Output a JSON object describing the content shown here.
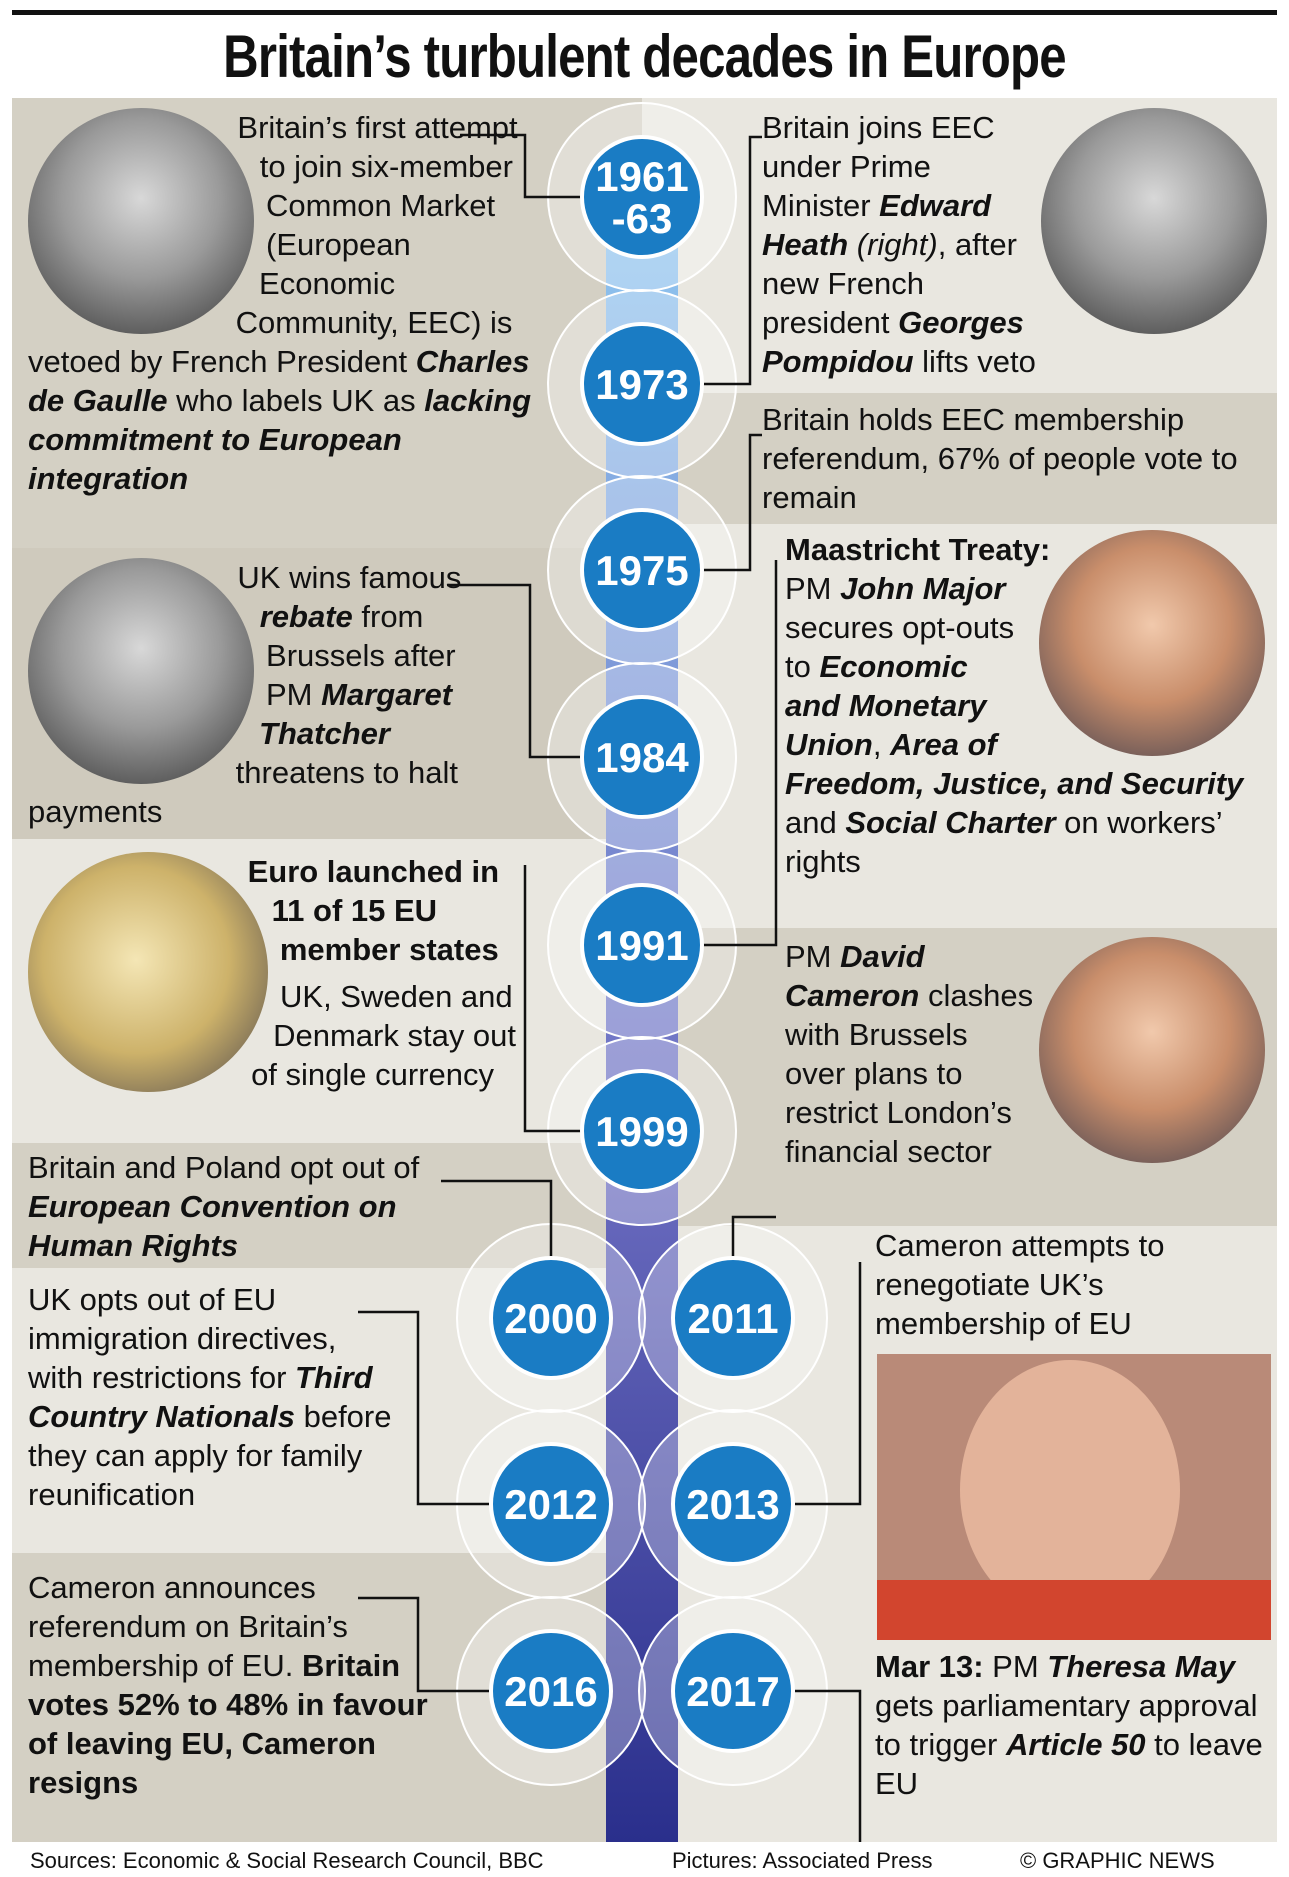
{
  "title": "Britain’s turbulent decades in Europe",
  "events": [
    {
      "year": "1961\n-63",
      "text": [
        [
          {
            "text": "Britain’s first attempt to join six-member Common Market (European Economic Community, EEC) is vetoed by French President "
          },
          {
            "text": "Charles de Gaulle",
            "style": "bi"
          },
          {
            "text": " who labels UK as "
          },
          {
            "text": "lacking commitment to European integration",
            "style": "bi"
          }
        ]
      ]
    },
    {
      "year": "1973",
      "text": [
        [
          {
            "text": "Britain joins EEC under Prime Minister "
          },
          {
            "text": "Edward Heath",
            "style": "bi"
          },
          {
            "text": " "
          },
          {
            "text": "(right)",
            "style": "i"
          },
          {
            "text": ", after new French president "
          },
          {
            "text": "Georges Pompidou",
            "style": "bi"
          },
          {
            "text": " lifts veto"
          }
        ]
      ]
    },
    {
      "year": "1975",
      "text": [
        [
          {
            "text": "Britain holds EEC membership referendum, 67% of people vote to remain"
          }
        ]
      ]
    },
    {
      "year": "1984",
      "text": [
        [
          {
            "text": "UK wins famous "
          },
          {
            "text": "rebate",
            "style": "bi"
          },
          {
            "text": " from Brussels after PM "
          },
          {
            "text": "Margaret Thatcher",
            "style": "bi"
          },
          {
            "text": " threatens to halt payments"
          }
        ]
      ]
    },
    {
      "year": "1991",
      "text": [
        [
          {
            "text": "Maastricht Treaty:",
            "style": "b"
          },
          {
            "text": " PM "
          },
          {
            "text": "John Major",
            "style": "bi"
          },
          {
            "text": " secures opt-outs to "
          },
          {
            "text": "Economic and Monetary Union",
            "style": "bi"
          },
          {
            "text": ", "
          },
          {
            "text": "Area of Freedom, Justice, and Security",
            "style": "bi"
          },
          {
            "text": " and "
          },
          {
            "text": "Social Charter",
            "style": "bi"
          },
          {
            "text": " on workers’ rights"
          }
        ]
      ]
    },
    {
      "year": "1999",
      "text": [
        [
          {
            "text": "Euro launched in 11 of 15 EU member states",
            "style": "b"
          }
        ],
        [
          {
            "text": "UK, Sweden and Denmark stay out of single currency"
          }
        ]
      ]
    },
    {
      "year": "2000",
      "text": [
        [
          {
            "text": "Britain and Poland opt out of "
          },
          {
            "text": "European Convention on Human Rights",
            "style": "bi"
          }
        ]
      ]
    },
    {
      "year": "2011",
      "text": [
        [
          {
            "text": "PM "
          },
          {
            "text": "David Cameron",
            "style": "bi"
          },
          {
            "text": " clashes with Brussels over plans to restrict London’s financial sector"
          }
        ]
      ]
    },
    {
      "year": "2012",
      "text": [
        [
          {
            "text": "UK opts out of EU immigration directives, with restrictions for "
          },
          {
            "text": "Third Country Nationals",
            "style": "bi"
          },
          {
            "text": " before they can apply for family reunification"
          }
        ]
      ]
    },
    {
      "year": "2013",
      "text": [
        [
          {
            "text": "Cameron attempts to renegotiate UK’s membership of EU"
          }
        ]
      ]
    },
    {
      "year": "2016",
      "text": [
        [
          {
            "text": "Cameron announces referendum on Britain’s membership of EU. "
          },
          {
            "text": "Britain votes 52% to 48% in favour of leaving EU, Cameron resigns",
            "style": "b"
          }
        ]
      ]
    },
    {
      "year": "2017",
      "text": [
        [
          {
            "text": "Mar 13:",
            "style": "b"
          },
          {
            "text": " PM "
          },
          {
            "text": "Theresa May",
            "style": "bi"
          },
          {
            "text": " gets parliamentary approval to trigger "
          },
          {
            "text": "Article 50",
            "style": "bi"
          },
          {
            "text": " to leave EU"
          }
        ]
      ]
    }
  ],
  "footer": {
    "sources": "Sources: Economic & Social Research Council, BBC",
    "pictures": "Pictures: Associated Press",
    "credit": "© GRAPHIC NEWS"
  }
}
